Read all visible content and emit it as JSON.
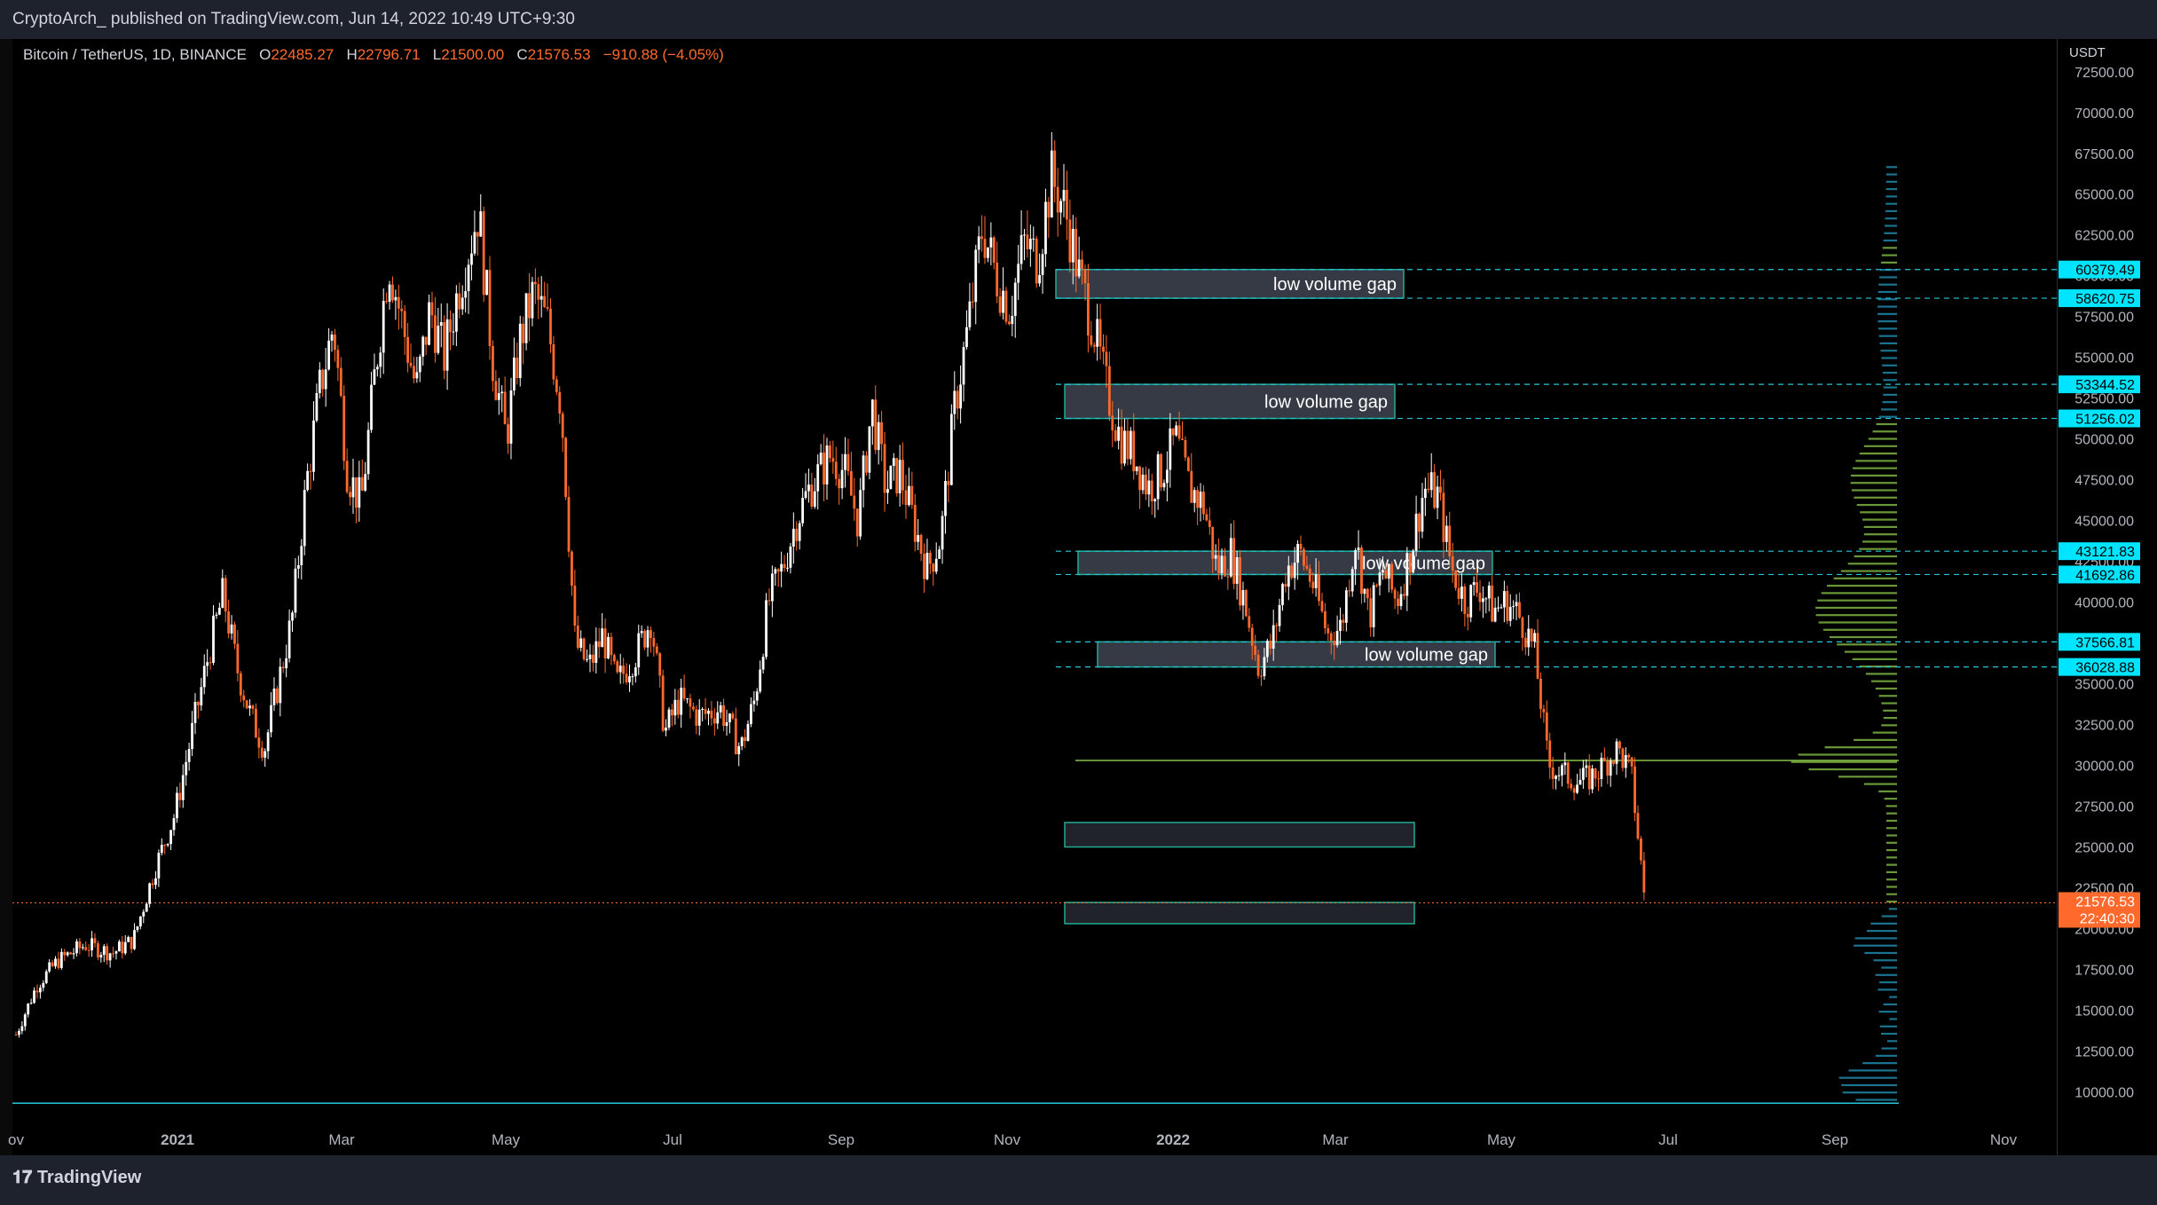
{
  "header": {
    "publisher": "CryptoArch_ published on TradingView.com, Jun 14, 2022 10:49 UTC+9:30"
  },
  "legend": {
    "symbol": "Bitcoin / TetherUS, 1D, BINANCE",
    "o_label": "O",
    "o": "22485.27",
    "h_label": "H",
    "h": "22796.71",
    "l_label": "L",
    "l": "21500.00",
    "c_label": "C",
    "c": "21576.53",
    "change": "−910.88 (−4.05%)"
  },
  "footer": {
    "brand": "TradingView"
  },
  "colors": {
    "candle": "#ff6a2c",
    "candle_up": "#ffffff",
    "box_fill": "#363a45",
    "box_border": "#22ab94",
    "level_line": "#26c6da",
    "vp_upper": "#7cb342",
    "vp_lower": "#1e88a8",
    "poc": "#8bc34a",
    "price_tag": "#00e5ff",
    "last_price": "#ff6a2c"
  },
  "chart_data": {
    "type": "candlestick",
    "currency": "USDT",
    "ylim": [
      8500,
      74500
    ],
    "y_ticks": [
      "72500.00",
      "70000.00",
      "67500.00",
      "65000.00",
      "62500.00",
      "60000.00",
      "57500.00",
      "55000.00",
      "52500.00",
      "50000.00",
      "47500.00",
      "45000.00",
      "42500.00",
      "40000.00",
      "37500.00",
      "35000.00",
      "32500.00",
      "30000.00",
      "27500.00",
      "25000.00",
      "22500.00",
      "20000.00",
      "17500.00",
      "15000.00",
      "12500.00",
      "10000.00"
    ],
    "x_ticks": [
      "ov",
      "2021",
      "Mar",
      "May",
      "Jul",
      "Sep",
      "Nov",
      "2022",
      "Mar",
      "May",
      "Jul",
      "Sep",
      "Nov"
    ],
    "last_price": "21576.53",
    "countdown": "22:40:30",
    "close_path": [
      [
        0,
        13500
      ],
      [
        15,
        16500
      ],
      [
        30,
        18000
      ],
      [
        50,
        19000
      ],
      [
        70,
        18500
      ],
      [
        85,
        19300
      ],
      [
        100,
        23500
      ],
      [
        115,
        27000
      ],
      [
        130,
        33000
      ],
      [
        140,
        37000
      ],
      [
        150,
        40500
      ],
      [
        160,
        36000
      ],
      [
        170,
        33000
      ],
      [
        180,
        31000
      ],
      [
        190,
        35000
      ],
      [
        200,
        39000
      ],
      [
        210,
        47000
      ],
      [
        220,
        53000
      ],
      [
        230,
        57000
      ],
      [
        240,
        48000
      ],
      [
        250,
        46000
      ],
      [
        260,
        54000
      ],
      [
        270,
        61000
      ],
      [
        280,
        57000
      ],
      [
        290,
        53000
      ],
      [
        300,
        58000
      ],
      [
        310,
        55000
      ],
      [
        320,
        59000
      ],
      [
        335,
        64000
      ],
      [
        345,
        55000
      ],
      [
        355,
        50000
      ],
      [
        365,
        56000
      ],
      [
        375,
        59000
      ],
      [
        385,
        57000
      ],
      [
        395,
        52000
      ],
      [
        405,
        37500
      ],
      [
        415,
        36000
      ],
      [
        425,
        38000
      ],
      [
        435,
        35000
      ],
      [
        450,
        37000
      ],
      [
        460,
        39000
      ],
      [
        470,
        32000
      ],
      [
        480,
        34000
      ],
      [
        495,
        33000
      ],
      [
        510,
        33500
      ],
      [
        525,
        31000
      ],
      [
        535,
        34000
      ],
      [
        545,
        40000
      ],
      [
        555,
        42000
      ],
      [
        565,
        45000
      ],
      [
        575,
        47000
      ],
      [
        590,
        49000
      ],
      [
        600,
        48000
      ],
      [
        610,
        45000
      ],
      [
        620,
        52000
      ],
      [
        630,
        47000
      ],
      [
        640,
        48000
      ],
      [
        650,
        45000
      ],
      [
        660,
        42000
      ],
      [
        670,
        44000
      ],
      [
        680,
        52000
      ],
      [
        690,
        57000
      ],
      [
        700,
        63000
      ],
      [
        710,
        60000
      ],
      [
        720,
        58000
      ],
      [
        730,
        62000
      ],
      [
        740,
        61000
      ],
      [
        750,
        66000
      ],
      [
        760,
        64000
      ],
      [
        770,
        60000
      ],
      [
        780,
        57000
      ],
      [
        790,
        53000
      ],
      [
        800,
        50000
      ],
      [
        810,
        49000
      ],
      [
        820,
        47000
      ],
      [
        830,
        48000
      ],
      [
        840,
        50000
      ],
      [
        850,
        47000
      ],
      [
        860,
        46000
      ],
      [
        870,
        42000
      ],
      [
        880,
        43000
      ],
      [
        890,
        40000
      ],
      [
        900,
        36000
      ],
      [
        910,
        37500
      ],
      [
        920,
        42000
      ],
      [
        930,
        43000
      ],
      [
        940,
        41000
      ],
      [
        950,
        38000
      ],
      [
        960,
        38500
      ],
      [
        970,
        44000
      ],
      [
        980,
        39000
      ],
      [
        990,
        42000
      ],
      [
        1000,
        40000
      ],
      [
        1010,
        43000
      ],
      [
        1020,
        47000
      ],
      [
        1030,
        46500
      ],
      [
        1040,
        42000
      ],
      [
        1050,
        40000
      ],
      [
        1060,
        41000
      ],
      [
        1070,
        39500
      ],
      [
        1080,
        40000
      ],
      [
        1090,
        39000
      ],
      [
        1100,
        37000
      ],
      [
        1110,
        30000
      ],
      [
        1120,
        29500
      ],
      [
        1130,
        29000
      ],
      [
        1140,
        29200
      ],
      [
        1150,
        30000
      ],
      [
        1160,
        31000
      ],
      [
        1170,
        29500
      ],
      [
        1180,
        21576
      ]
    ],
    "zones": [
      {
        "label": "low volume gap",
        "from": 58620.75,
        "to": 60379.49
      },
      {
        "label": "low volume gap",
        "from": 51256.02,
        "to": 53344.52
      },
      {
        "label": "low volume gap",
        "from": 41692.86,
        "to": 43121.83
      },
      {
        "label": "low volume gap",
        "from": 36028.88,
        "to": 37566.81
      },
      {
        "label": "",
        "from": 25000,
        "to": 26500
      },
      {
        "label": "",
        "from": 20300,
        "to": 21600
      }
    ],
    "levels": [
      "60379.49",
      "58620.75",
      "53344.52",
      "51256.02",
      "43121.83",
      "41692.86",
      "37566.81",
      "36028.88"
    ],
    "poc_price": 30300,
    "support_line_price": 9300
  }
}
